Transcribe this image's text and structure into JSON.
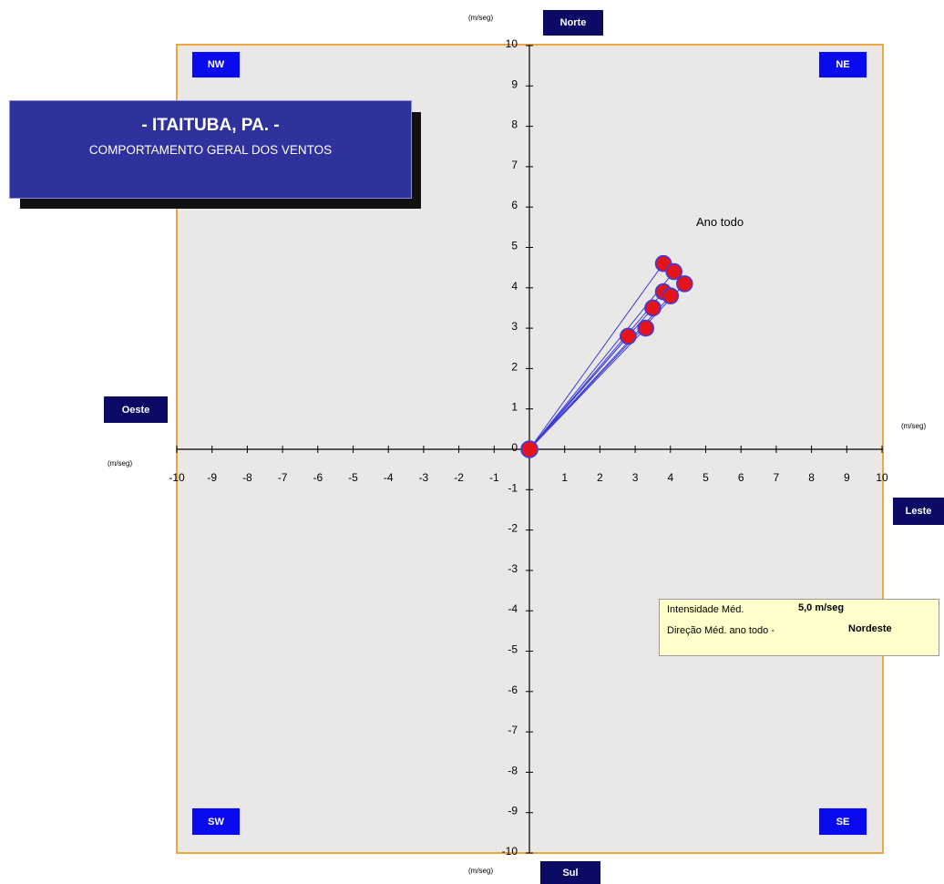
{
  "title": {
    "main": "- ITAITUBA, PA. -",
    "subtitle": "COMPORTAMENTO GERAL DOS VENTOS"
  },
  "directions": {
    "north": "Norte",
    "south": "Sul",
    "west": "Oeste",
    "east": "Leste"
  },
  "quadrants": {
    "nw": "NW",
    "ne": "NE",
    "sw": "SW",
    "se": "SE"
  },
  "units": {
    "top": "(m/seg)",
    "bottom": "(m/seg)",
    "left": "(m/seg)",
    "right": "(m/seg)"
  },
  "info_box": {
    "intensity_label": "Intensidade Méd.",
    "intensity_value": "5,0 m/seg",
    "direction_label": "Direção Méd. ano todo -",
    "direction_value": "Nordeste"
  },
  "colors": {
    "plot_border": "#f0a640",
    "point_fill": "#e4141b",
    "ray": "#3b3bd6",
    "label_box": "#0b0b66",
    "quadrant_box": "#0a0aee"
  },
  "chart_data": {
    "type": "scatter",
    "annotation": "Ano todo",
    "xlim": [
      -10,
      10
    ],
    "ylim": [
      -10,
      10
    ],
    "x_ticks": [
      -10,
      -9,
      -8,
      -7,
      -6,
      -5,
      -4,
      -3,
      -2,
      -1,
      0,
      1,
      2,
      3,
      4,
      5,
      6,
      7,
      8,
      9,
      10
    ],
    "y_ticks": [
      -10,
      -9,
      -8,
      -7,
      -6,
      -5,
      -4,
      -3,
      -2,
      -1,
      0,
      1,
      2,
      3,
      4,
      5,
      6,
      7,
      8,
      9,
      10
    ],
    "origin": [
      0,
      0
    ],
    "points": [
      {
        "x": 3.8,
        "y": 4.6
      },
      {
        "x": 4.1,
        "y": 4.4
      },
      {
        "x": 4.4,
        "y": 4.1
      },
      {
        "x": 3.8,
        "y": 3.9
      },
      {
        "x": 4.0,
        "y": 3.8
      },
      {
        "x": 3.5,
        "y": 3.5
      },
      {
        "x": 3.3,
        "y": 3.0
      },
      {
        "x": 2.8,
        "y": 2.8
      }
    ],
    "grid": false
  }
}
